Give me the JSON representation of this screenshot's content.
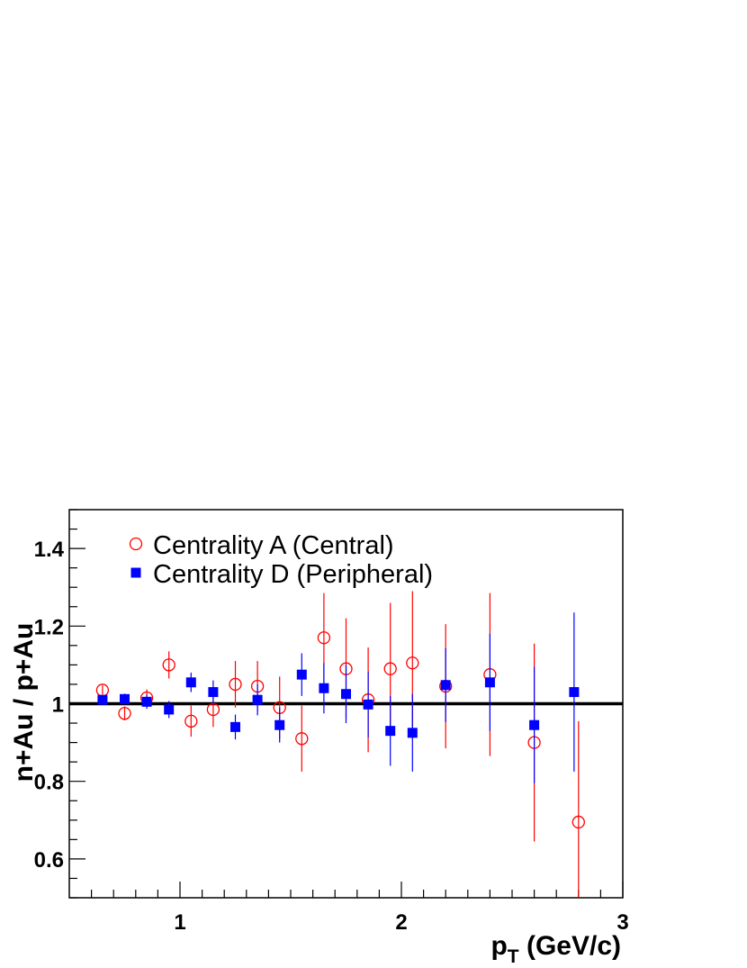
{
  "chart_data": {
    "type": "scatter",
    "title": "",
    "xlabel_main": "p",
    "xlabel_sub": "T",
    "xlabel_unit": " (GeV/c)",
    "ylabel": "n+Au / p+Au",
    "xlim": [
      0.5,
      3.0
    ],
    "ylim": [
      0.5,
      1.5
    ],
    "x_ticks": [
      {
        "value": 1,
        "label": "1"
      },
      {
        "value": 2,
        "label": "2"
      },
      {
        "value": 3,
        "label": "3"
      }
    ],
    "y_ticks": [
      {
        "value": 0.6,
        "label": "0.6"
      },
      {
        "value": 0.8,
        "label": "0.8"
      },
      {
        "value": 1.0,
        "label": "1"
      },
      {
        "value": 1.2,
        "label": "1.2"
      },
      {
        "value": 1.4,
        "label": "1.4"
      }
    ],
    "reference_line": 1.0,
    "legend_position": "top-left",
    "series": [
      {
        "name": "Centrality A (Central)",
        "marker": "open-circle",
        "color": "#ff0000",
        "points": [
          {
            "x": 0.65,
            "y": 1.035,
            "err": 0.012
          },
          {
            "x": 0.75,
            "y": 0.975,
            "err": 0.018
          },
          {
            "x": 0.85,
            "y": 1.015,
            "err": 0.022
          },
          {
            "x": 0.95,
            "y": 1.1,
            "err": 0.035
          },
          {
            "x": 1.05,
            "y": 0.955,
            "err": 0.04
          },
          {
            "x": 1.15,
            "y": 0.985,
            "err": 0.045
          },
          {
            "x": 1.25,
            "y": 1.05,
            "err": 0.06
          },
          {
            "x": 1.35,
            "y": 1.045,
            "err": 0.065
          },
          {
            "x": 1.45,
            "y": 0.99,
            "err": 0.08
          },
          {
            "x": 1.55,
            "y": 0.91,
            "err": 0.085
          },
          {
            "x": 1.65,
            "y": 1.17,
            "err": 0.115
          },
          {
            "x": 1.75,
            "y": 1.09,
            "err": 0.13
          },
          {
            "x": 1.85,
            "y": 1.01,
            "err": 0.135
          },
          {
            "x": 1.95,
            "y": 1.09,
            "err": 0.17
          },
          {
            "x": 2.05,
            "y": 1.105,
            "err": 0.185
          },
          {
            "x": 2.2,
            "y": 1.045,
            "err": 0.16
          },
          {
            "x": 2.4,
            "y": 1.075,
            "err": 0.21
          },
          {
            "x": 2.6,
            "y": 0.9,
            "err": 0.255
          },
          {
            "x": 2.8,
            "y": 0.695,
            "err": 0.26
          }
        ]
      },
      {
        "name": "Centrality D (Peripheral)",
        "marker": "filled-square",
        "color": "#0000ff",
        "points": [
          {
            "x": 0.65,
            "y": 1.01,
            "err": 0.01
          },
          {
            "x": 0.75,
            "y": 1.012,
            "err": 0.014
          },
          {
            "x": 0.85,
            "y": 1.005,
            "err": 0.018
          },
          {
            "x": 0.95,
            "y": 0.985,
            "err": 0.022
          },
          {
            "x": 1.05,
            "y": 1.055,
            "err": 0.025
          },
          {
            "x": 1.15,
            "y": 1.03,
            "err": 0.03
          },
          {
            "x": 1.25,
            "y": 0.94,
            "err": 0.032
          },
          {
            "x": 1.35,
            "y": 1.01,
            "err": 0.04
          },
          {
            "x": 1.45,
            "y": 0.945,
            "err": 0.045
          },
          {
            "x": 1.55,
            "y": 1.075,
            "err": 0.055
          },
          {
            "x": 1.65,
            "y": 1.04,
            "err": 0.065
          },
          {
            "x": 1.75,
            "y": 1.025,
            "err": 0.075
          },
          {
            "x": 1.85,
            "y": 0.998,
            "err": 0.085
          },
          {
            "x": 1.95,
            "y": 0.93,
            "err": 0.09
          },
          {
            "x": 2.05,
            "y": 0.925,
            "err": 0.1
          },
          {
            "x": 2.2,
            "y": 1.048,
            "err": 0.095
          },
          {
            "x": 2.4,
            "y": 1.055,
            "err": 0.125
          },
          {
            "x": 2.6,
            "y": 0.945,
            "err": 0.15
          },
          {
            "x": 2.78,
            "y": 1.03,
            "err": 0.205
          }
        ]
      }
    ]
  }
}
